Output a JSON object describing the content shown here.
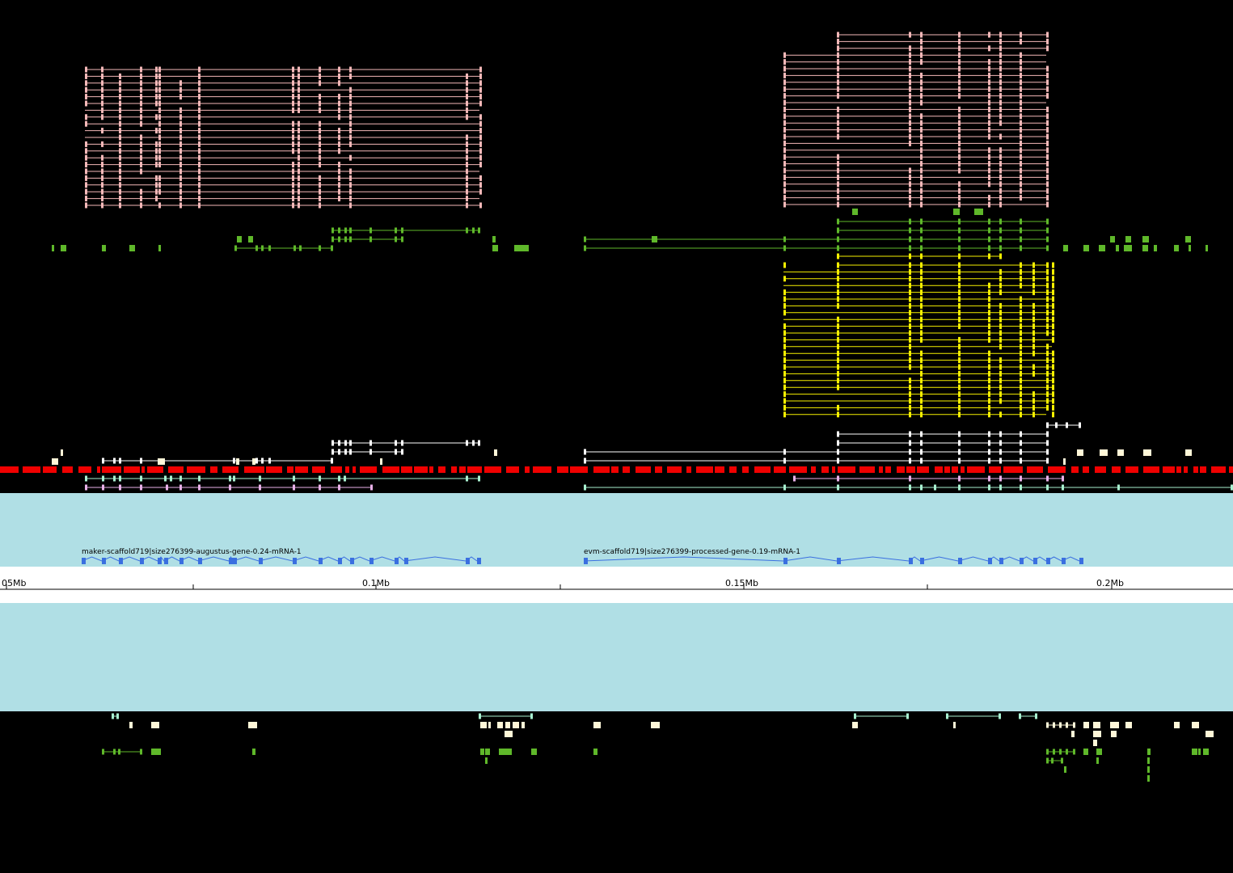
{
  "axis": {
    "ticks": [
      "05Mb",
      "0.1Mb",
      "0.15Mb",
      "0.2Mb"
    ]
  },
  "genes": [
    {
      "label": "maker-scaffold719|size276399-augustus-gene-0.24-mRNA-1"
    },
    {
      "label": "evm-scaffold719|size276399-processed-gene-0.19-mRNA-1"
    }
  ]
}
